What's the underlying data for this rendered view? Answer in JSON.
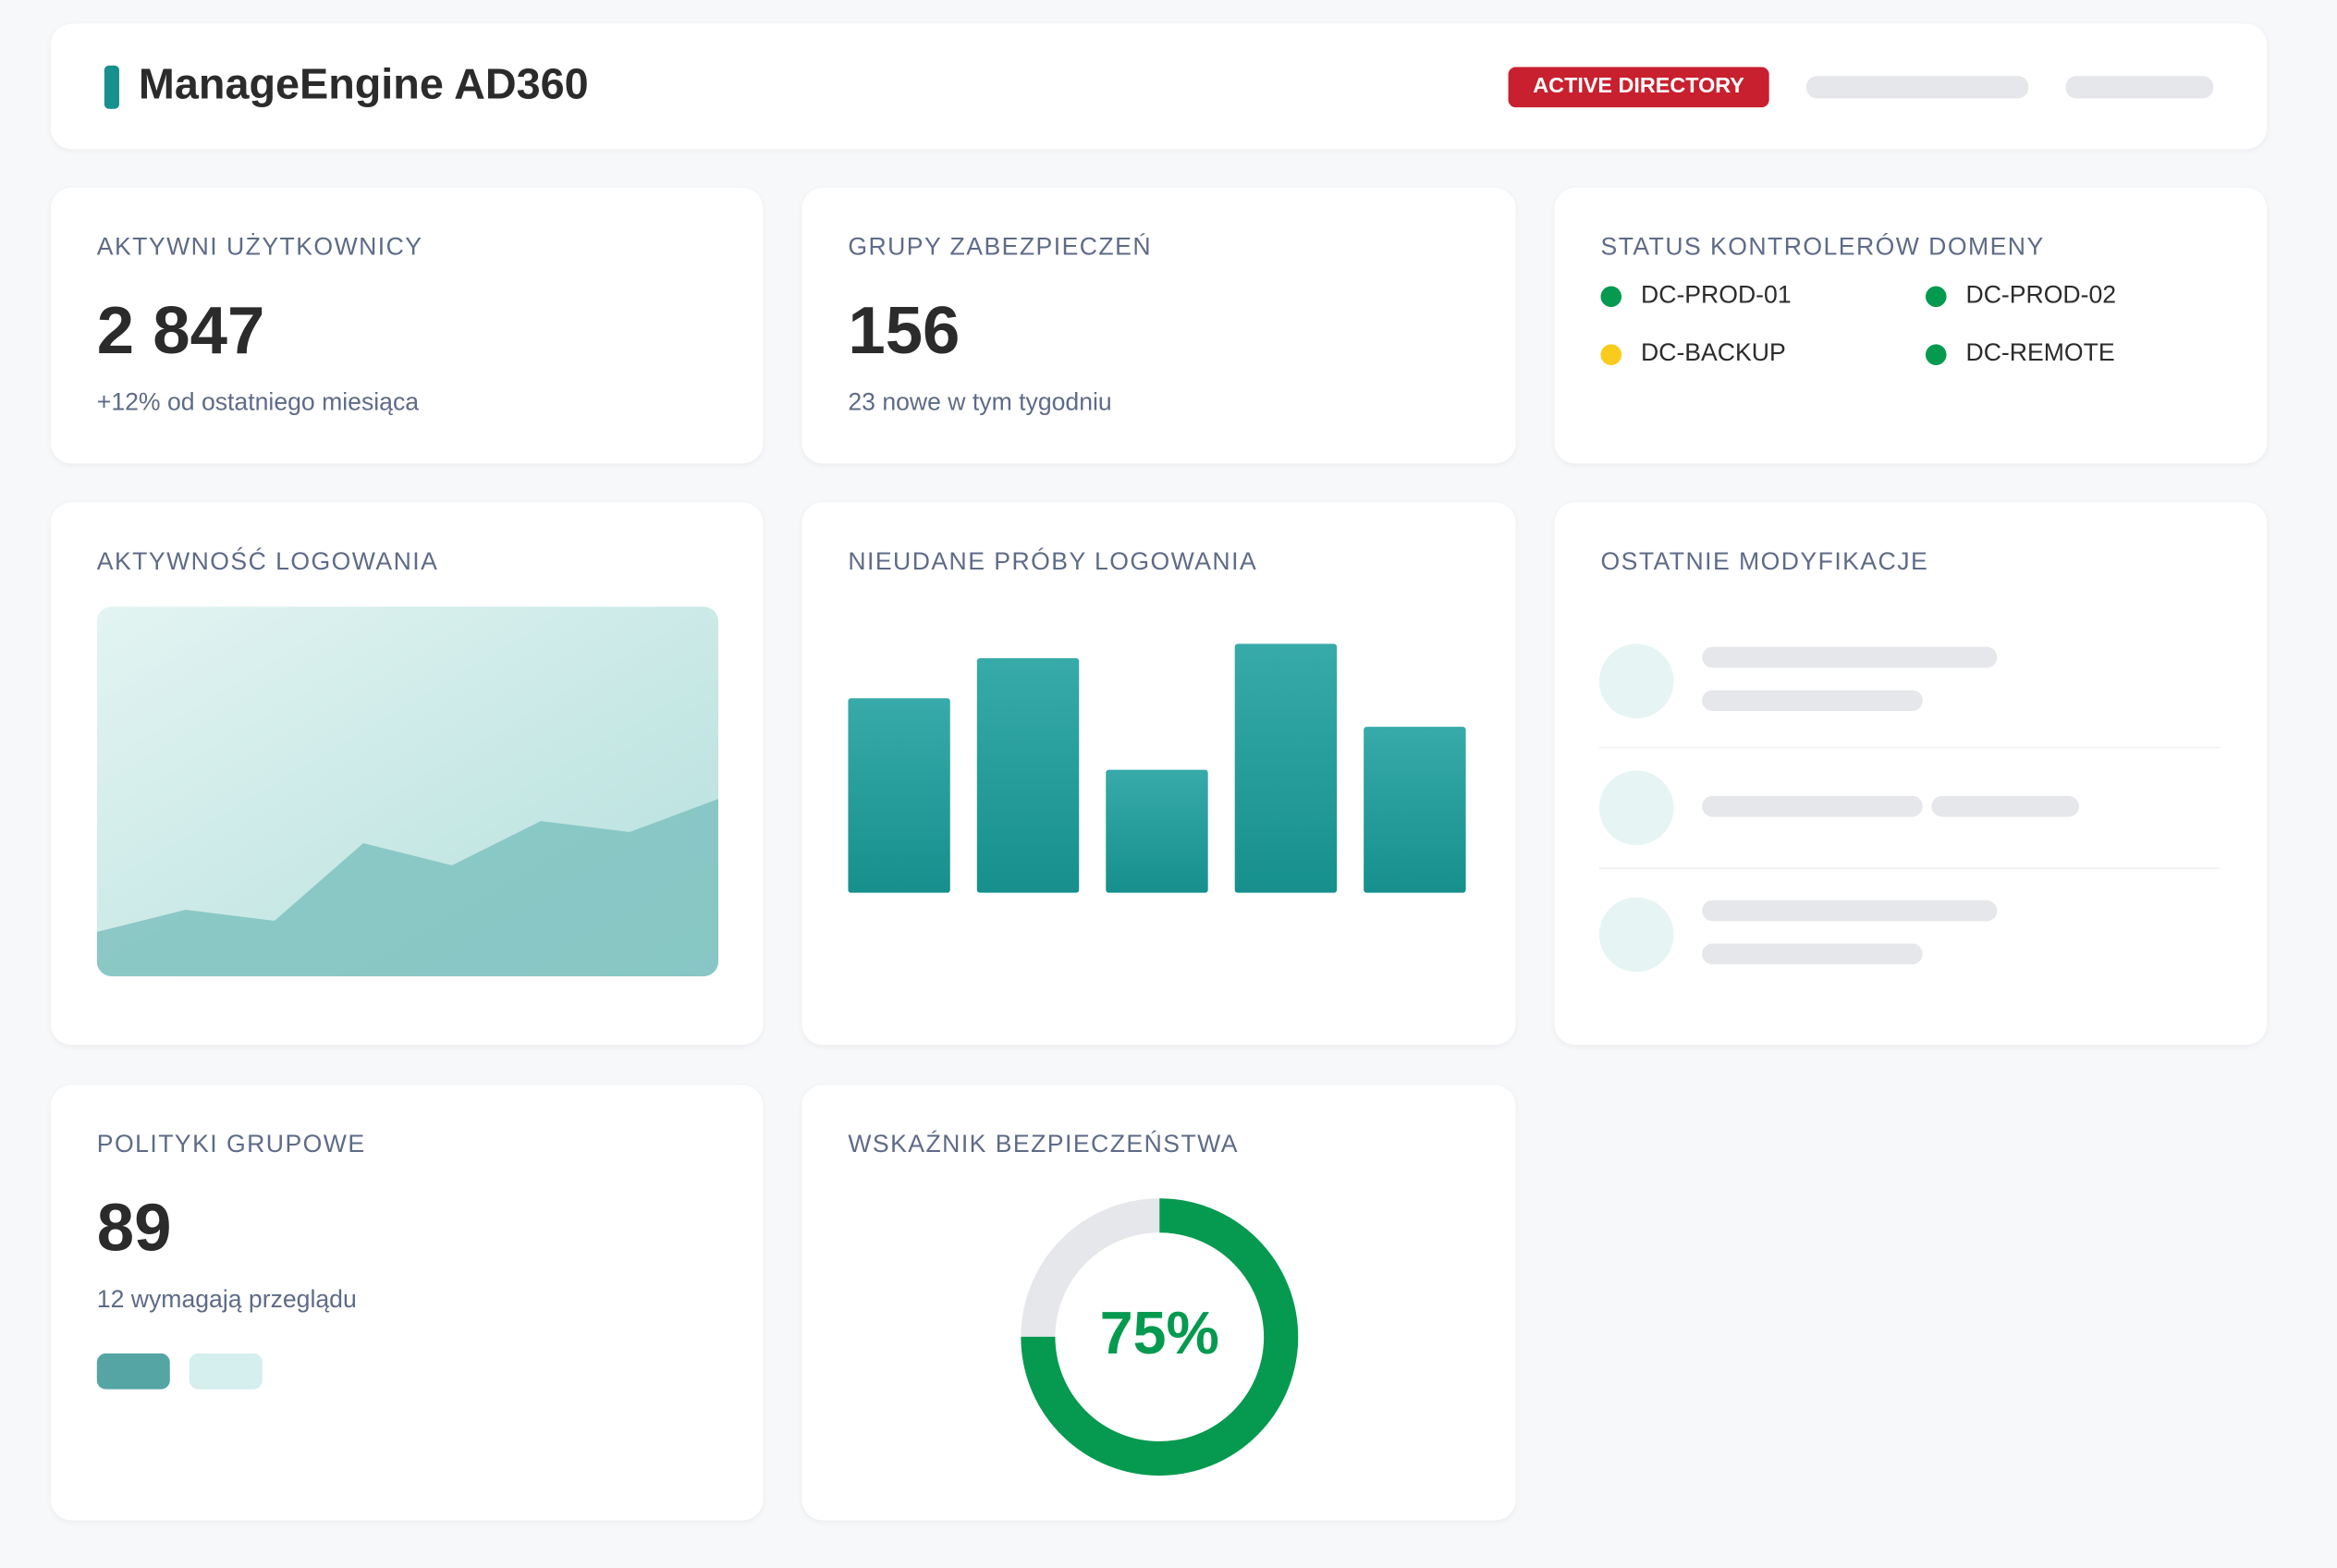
{
  "header": {
    "title": "ManageEngine AD360",
    "badge": "ACTIVE DIRECTORY"
  },
  "colors": {
    "accent": "#17908e",
    "badge": "#c8202f",
    "ok": "#059a4f",
    "warn": "#f9cb1c",
    "skeleton": "#e6e7ea"
  },
  "cards": {
    "active_users": {
      "label": "AKTYWNI UŻYTKOWNICY",
      "value": "2 847",
      "note": "+12% od ostatniego miesiąca"
    },
    "security_groups": {
      "label": "GRUPY ZABEZPIECZEŃ",
      "value": "156",
      "note": "23 nowe w tym tygodniu"
    },
    "dc_status": {
      "label": "STATUS KONTROLERÓW DOMENY",
      "items": [
        {
          "name": "DC-PROD-01",
          "status": "ok"
        },
        {
          "name": "DC-PROD-02",
          "status": "ok"
        },
        {
          "name": "DC-BACKUP",
          "status": "warn"
        },
        {
          "name": "DC-REMOTE",
          "status": "ok"
        }
      ]
    },
    "login_activity": {
      "label": "AKTYWNOŚĆ LOGOWANIA"
    },
    "failed_logins": {
      "label": "NIEUDANE PRÓBY LOGOWANIA"
    },
    "recent_changes": {
      "label": "OSTATNIE MODYFIKACJE"
    },
    "group_policies": {
      "label": "POLITYKI GRUPOWE",
      "value": "89",
      "note": "12 wymagają przeglądu"
    },
    "security_score": {
      "label": "WSKAŹNIK BEZPIECZEŃSTWA",
      "value": "75%",
      "percent": 75
    }
  },
  "chart_data": [
    {
      "type": "area",
      "title": "AKTYWNOŚĆ LOGOWANIA",
      "x": [
        0,
        1,
        2,
        3,
        4,
        5,
        6,
        7
      ],
      "values": [
        12,
        18,
        15,
        36,
        30,
        42,
        39,
        48
      ],
      "ylim": [
        0,
        100
      ]
    },
    {
      "type": "bar",
      "title": "NIEUDANE PRÓBY LOGOWANIA",
      "categories": [
        "1",
        "2",
        "3",
        "4",
        "5"
      ],
      "values": [
        68,
        82,
        43,
        87,
        58
      ],
      "ylim": [
        0,
        100
      ]
    }
  ]
}
